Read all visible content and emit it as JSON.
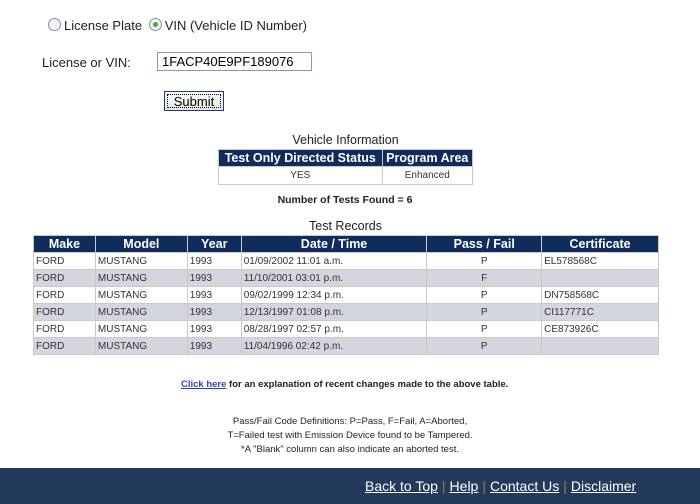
{
  "search": {
    "option_plate": "License Plate",
    "option_vin": "VIN (Vehicle ID Number)",
    "selected": "vin",
    "field_label": "License or VIN:",
    "field_value": "1FACP40E9PF189076",
    "submit_label": "Submit"
  },
  "vehicle_info": {
    "title": "Vehicle Information",
    "headers": [
      "Test Only Directed Status",
      "Program Area"
    ],
    "values": [
      "YES",
      "Enhanced"
    ]
  },
  "tests_found": "Number of Tests Found = 6",
  "test_records": {
    "title": "Test Records",
    "headers": [
      "Make",
      "Model",
      "Year",
      "Date / Time",
      "Pass / Fail",
      "Certificate"
    ],
    "rows": [
      [
        "FORD",
        "MUSTANG",
        "1993",
        "01/09/2002 11:01 a.m.",
        "P",
        "EL578568C"
      ],
      [
        "FORD",
        "MUSTANG",
        "1993",
        "11/10/2001 03:01 p.m.",
        "F",
        ""
      ],
      [
        "FORD",
        "MUSTANG",
        "1993",
        "09/02/1999 12:34 p.m.",
        "P",
        "DN758568C"
      ],
      [
        "FORD",
        "MUSTANG",
        "1993",
        "12/13/1997 01:08 p.m.",
        "P",
        "CI117771C"
      ],
      [
        "FORD",
        "MUSTANG",
        "1993",
        "08/28/1997 02:57 p.m.",
        "P",
        "CE873926C"
      ],
      [
        "FORD",
        "MUSTANG",
        "1993",
        "11/04/1996 02:42 p.m.",
        "P",
        ""
      ]
    ]
  },
  "explanation": {
    "link": "Click here",
    "text": " for an explanation of recent changes made to the above table."
  },
  "definitions": [
    "Pass/Fail Code Definitions: P=Pass, F=Fail, A=Aborted,",
    "T=Failed test with Emission Device found to be Tampered.",
    "*A \"Blank\" column can also indicate an aborted test."
  ],
  "footer": {
    "links": [
      "Back to Top",
      "Help",
      "Contact Us",
      "Disclaimer"
    ]
  }
}
